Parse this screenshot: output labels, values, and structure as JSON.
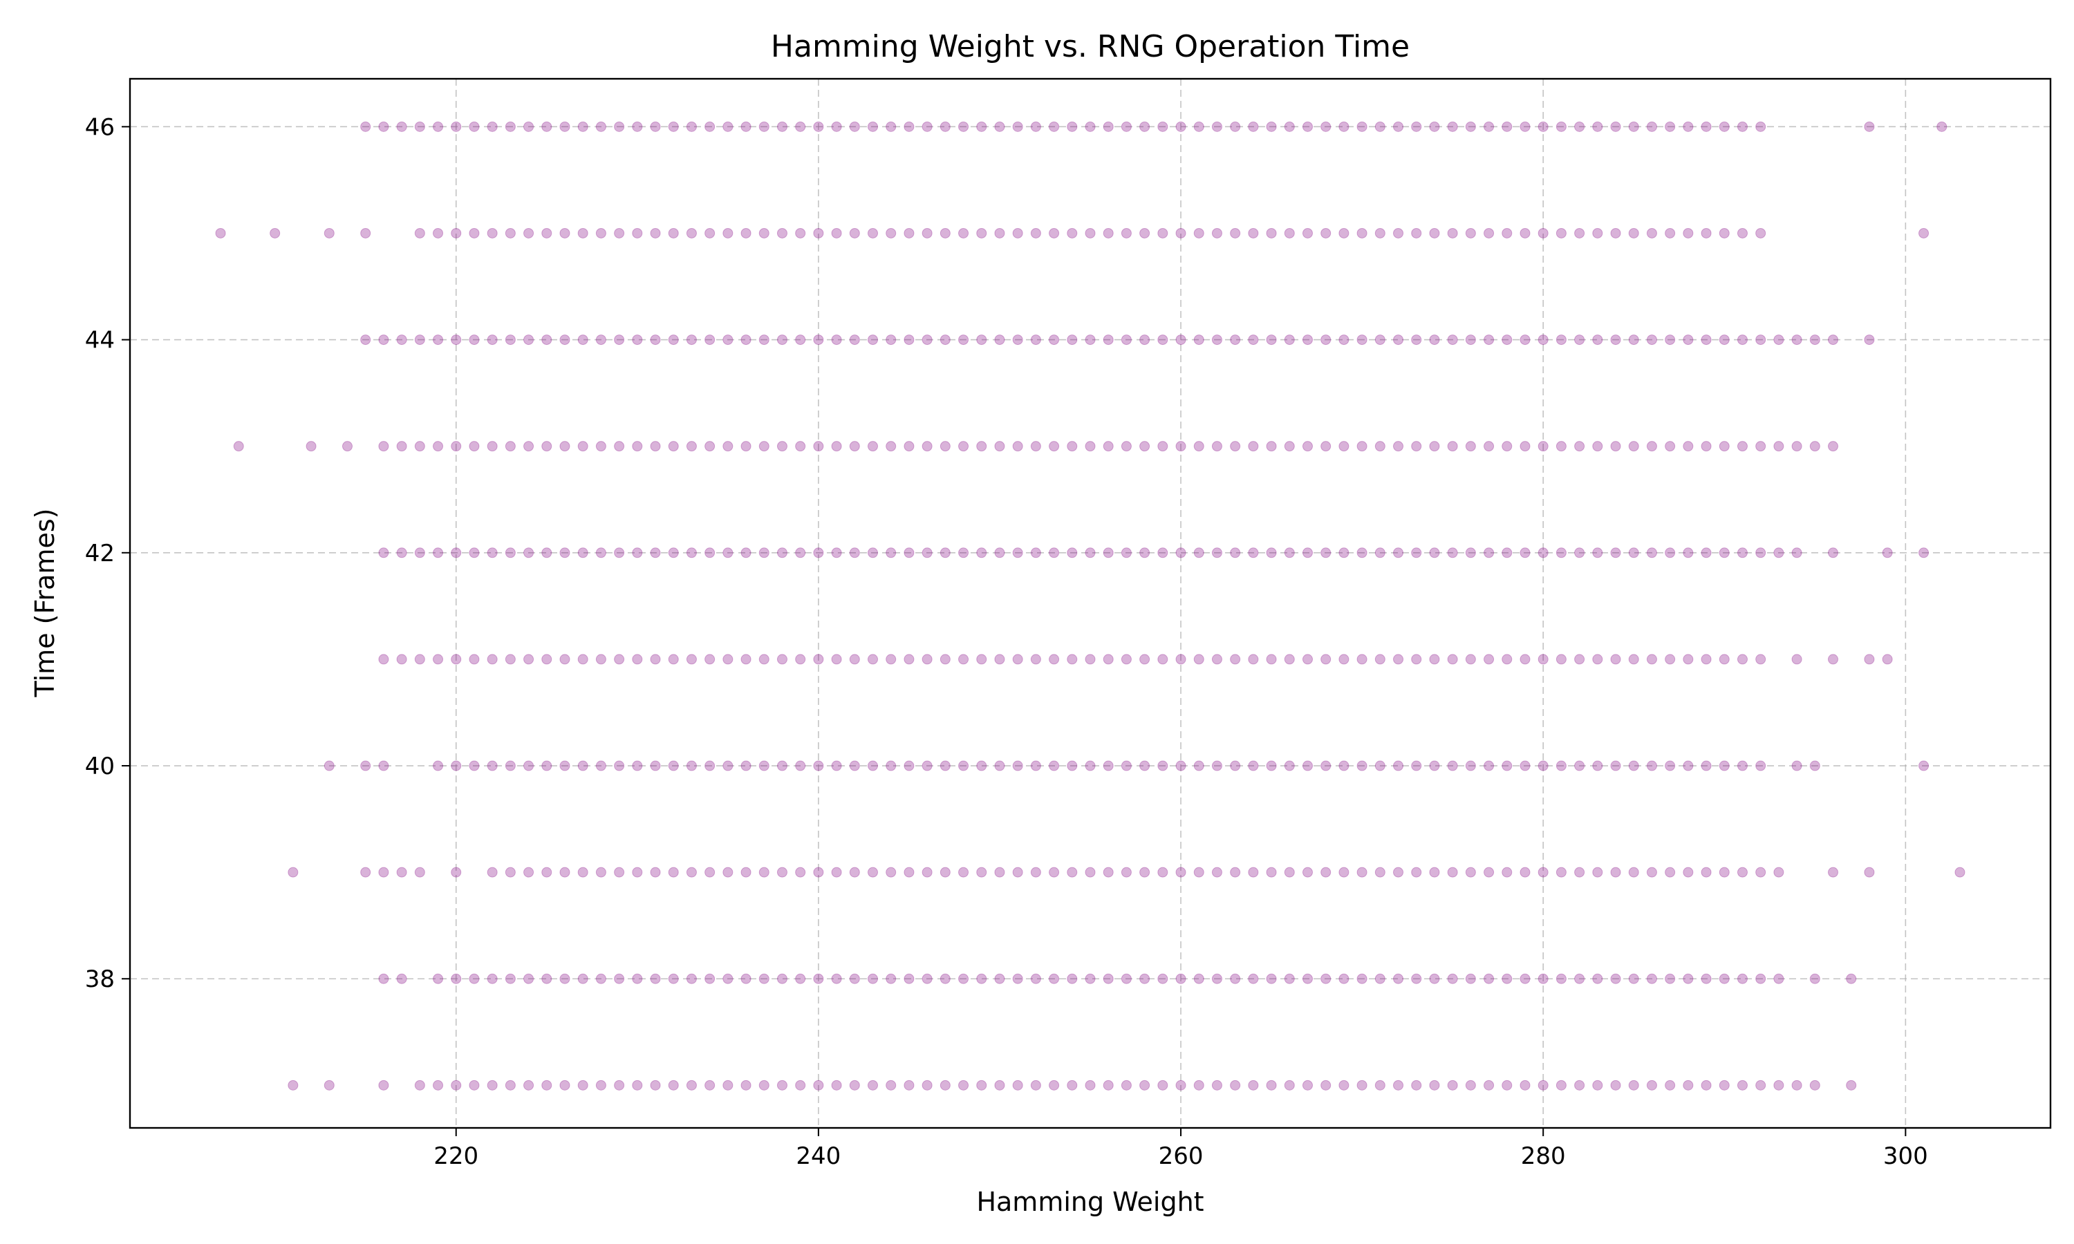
{
  "chart_data": {
    "type": "scatter",
    "title": "Hamming Weight vs. RNG Operation Time",
    "xlabel": "Hamming Weight",
    "ylabel": "Time (Frames)",
    "xlim": [
      202,
      308
    ],
    "ylim": [
      36.6,
      46.45
    ],
    "xticks": [
      220,
      240,
      260,
      280,
      300
    ],
    "yticks": [
      38,
      40,
      42,
      44,
      46
    ],
    "grid": true,
    "legend": "none",
    "marker_color": "#800080",
    "marker_alpha": 0.3,
    "rows": [
      {
        "y": 46,
        "x": [
          215,
          216,
          217,
          218,
          219,
          220,
          221,
          222,
          223,
          224,
          225,
          226,
          227,
          228,
          229,
          230,
          231,
          232,
          233,
          234,
          235,
          236,
          237,
          238,
          239,
          240,
          241,
          242,
          243,
          244,
          245,
          246,
          247,
          248,
          249,
          250,
          251,
          252,
          253,
          254,
          255,
          256,
          257,
          258,
          259,
          260,
          261,
          262,
          263,
          264,
          265,
          266,
          267,
          268,
          269,
          270,
          271,
          272,
          273,
          274,
          275,
          276,
          277,
          278,
          279,
          280,
          281,
          282,
          283,
          284,
          285,
          286,
          287,
          288,
          289,
          290,
          291,
          292,
          298,
          302
        ]
      },
      {
        "y": 45,
        "x": [
          207,
          210,
          213,
          215,
          218,
          219,
          220,
          221,
          222,
          223,
          224,
          225,
          226,
          227,
          228,
          229,
          230,
          231,
          232,
          233,
          234,
          235,
          236,
          237,
          238,
          239,
          240,
          241,
          242,
          243,
          244,
          245,
          246,
          247,
          248,
          249,
          250,
          251,
          252,
          253,
          254,
          255,
          256,
          257,
          258,
          259,
          260,
          261,
          262,
          263,
          264,
          265,
          266,
          267,
          268,
          269,
          270,
          271,
          272,
          273,
          274,
          275,
          276,
          277,
          278,
          279,
          280,
          281,
          282,
          283,
          284,
          285,
          286,
          287,
          288,
          289,
          290,
          291,
          292,
          301
        ]
      },
      {
        "y": 44,
        "x": [
          215,
          216,
          217,
          218,
          219,
          220,
          221,
          222,
          223,
          224,
          225,
          226,
          227,
          228,
          229,
          230,
          231,
          232,
          233,
          234,
          235,
          236,
          237,
          238,
          239,
          240,
          241,
          242,
          243,
          244,
          245,
          246,
          247,
          248,
          249,
          250,
          251,
          252,
          253,
          254,
          255,
          256,
          257,
          258,
          259,
          260,
          261,
          262,
          263,
          264,
          265,
          266,
          267,
          268,
          269,
          270,
          271,
          272,
          273,
          274,
          275,
          276,
          277,
          278,
          279,
          280,
          281,
          282,
          283,
          284,
          285,
          286,
          287,
          288,
          289,
          290,
          291,
          292,
          293,
          294,
          295,
          296,
          298
        ]
      },
      {
        "y": 43,
        "x": [
          208,
          212,
          214,
          216,
          217,
          218,
          219,
          220,
          221,
          222,
          223,
          224,
          225,
          226,
          227,
          228,
          229,
          230,
          231,
          232,
          233,
          234,
          235,
          236,
          237,
          238,
          239,
          240,
          241,
          242,
          243,
          244,
          245,
          246,
          247,
          248,
          249,
          250,
          251,
          252,
          253,
          254,
          255,
          256,
          257,
          258,
          259,
          260,
          261,
          262,
          263,
          264,
          265,
          266,
          267,
          268,
          269,
          270,
          271,
          272,
          273,
          274,
          275,
          276,
          277,
          278,
          279,
          280,
          281,
          282,
          283,
          284,
          285,
          286,
          287,
          288,
          289,
          290,
          291,
          292,
          293,
          294,
          295,
          296
        ]
      },
      {
        "y": 42,
        "x": [
          216,
          217,
          218,
          219,
          220,
          221,
          222,
          223,
          224,
          225,
          226,
          227,
          228,
          229,
          230,
          231,
          232,
          233,
          234,
          235,
          236,
          237,
          238,
          239,
          240,
          241,
          242,
          243,
          244,
          245,
          246,
          247,
          248,
          249,
          250,
          251,
          252,
          253,
          254,
          255,
          256,
          257,
          258,
          259,
          260,
          261,
          262,
          263,
          264,
          265,
          266,
          267,
          268,
          269,
          270,
          271,
          272,
          273,
          274,
          275,
          276,
          277,
          278,
          279,
          280,
          281,
          282,
          283,
          284,
          285,
          286,
          287,
          288,
          289,
          290,
          291,
          292,
          293,
          294,
          296,
          299,
          301
        ]
      },
      {
        "y": 41,
        "x": [
          216,
          217,
          218,
          219,
          220,
          221,
          222,
          223,
          224,
          225,
          226,
          227,
          228,
          229,
          230,
          231,
          232,
          233,
          234,
          235,
          236,
          237,
          238,
          239,
          240,
          241,
          242,
          243,
          244,
          245,
          246,
          247,
          248,
          249,
          250,
          251,
          252,
          253,
          254,
          255,
          256,
          257,
          258,
          259,
          260,
          261,
          262,
          263,
          264,
          265,
          266,
          267,
          268,
          269,
          270,
          271,
          272,
          273,
          274,
          275,
          276,
          277,
          278,
          279,
          280,
          281,
          282,
          283,
          284,
          285,
          286,
          287,
          288,
          289,
          290,
          291,
          292,
          294,
          296,
          298,
          299
        ]
      },
      {
        "y": 40,
        "x": [
          213,
          215,
          216,
          219,
          220,
          221,
          222,
          223,
          224,
          225,
          226,
          227,
          228,
          229,
          230,
          231,
          232,
          233,
          234,
          235,
          236,
          237,
          238,
          239,
          240,
          241,
          242,
          243,
          244,
          245,
          246,
          247,
          248,
          249,
          250,
          251,
          252,
          253,
          254,
          255,
          256,
          257,
          258,
          259,
          260,
          261,
          262,
          263,
          264,
          265,
          266,
          267,
          268,
          269,
          270,
          271,
          272,
          273,
          274,
          275,
          276,
          277,
          278,
          279,
          280,
          281,
          282,
          283,
          284,
          285,
          286,
          287,
          288,
          289,
          290,
          291,
          292,
          294,
          295,
          301
        ]
      },
      {
        "y": 39,
        "x": [
          211,
          215,
          216,
          217,
          218,
          220,
          222,
          223,
          224,
          225,
          226,
          227,
          228,
          229,
          230,
          231,
          232,
          233,
          234,
          235,
          236,
          237,
          238,
          239,
          240,
          241,
          242,
          243,
          244,
          245,
          246,
          247,
          248,
          249,
          250,
          251,
          252,
          253,
          254,
          255,
          256,
          257,
          258,
          259,
          260,
          261,
          262,
          263,
          264,
          265,
          266,
          267,
          268,
          269,
          270,
          271,
          272,
          273,
          274,
          275,
          276,
          277,
          278,
          279,
          280,
          281,
          282,
          283,
          284,
          285,
          286,
          287,
          288,
          289,
          290,
          291,
          292,
          293,
          296,
          298,
          303
        ]
      },
      {
        "y": 38,
        "x": [
          216,
          217,
          219,
          220,
          221,
          222,
          223,
          224,
          225,
          226,
          227,
          228,
          229,
          230,
          231,
          232,
          233,
          234,
          235,
          236,
          237,
          238,
          239,
          240,
          241,
          242,
          243,
          244,
          245,
          246,
          247,
          248,
          249,
          250,
          251,
          252,
          253,
          254,
          255,
          256,
          257,
          258,
          259,
          260,
          261,
          262,
          263,
          264,
          265,
          266,
          267,
          268,
          269,
          270,
          271,
          272,
          273,
          274,
          275,
          276,
          277,
          278,
          279,
          280,
          281,
          282,
          283,
          284,
          285,
          286,
          287,
          288,
          289,
          290,
          291,
          292,
          293,
          295,
          297
        ]
      },
      {
        "y": 37,
        "x": [
          211,
          213,
          216,
          218,
          219,
          220,
          221,
          222,
          223,
          224,
          225,
          226,
          227,
          228,
          229,
          230,
          231,
          232,
          233,
          234,
          235,
          236,
          237,
          238,
          239,
          240,
          241,
          242,
          243,
          244,
          245,
          246,
          247,
          248,
          249,
          250,
          251,
          252,
          253,
          254,
          255,
          256,
          257,
          258,
          259,
          260,
          261,
          262,
          263,
          264,
          265,
          266,
          267,
          268,
          269,
          270,
          271,
          272,
          273,
          274,
          275,
          276,
          277,
          278,
          279,
          280,
          281,
          282,
          283,
          284,
          285,
          286,
          287,
          288,
          289,
          290,
          291,
          292,
          293,
          294,
          295,
          297
        ]
      }
    ]
  }
}
